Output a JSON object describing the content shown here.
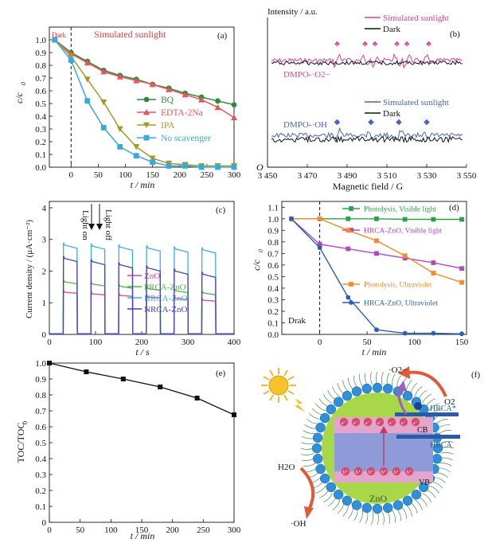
{
  "chart_data": [
    {
      "type": "line",
      "panel_label": "(a)",
      "annotation_dark": "Dark",
      "annotation_title": "Simulated sunlight",
      "xlabel": "t / min",
      "ylabel": "c/c0",
      "xlim": [
        -40,
        300
      ],
      "ylim": [
        0,
        1.1
      ],
      "xticks": [
        0,
        50,
        100,
        150,
        200,
        250,
        300
      ],
      "yticks": [
        0.0,
        0.1,
        0.2,
        0.3,
        0.4,
        0.5,
        0.6,
        0.7,
        0.8,
        0.9,
        1.0
      ],
      "series": [
        {
          "name": "BQ",
          "color": "#2e8b3e",
          "marker": "circle",
          "x": [
            -30,
            0,
            30,
            60,
            90,
            120,
            150,
            180,
            210,
            240,
            270,
            300
          ],
          "y": [
            1.0,
            0.9,
            0.83,
            0.76,
            0.72,
            0.69,
            0.65,
            0.62,
            0.58,
            0.55,
            0.52,
            0.49
          ]
        },
        {
          "name": "EDTA-2Na",
          "color": "#e8565a",
          "marker": "triangle",
          "x": [
            -30,
            0,
            30,
            60,
            90,
            120,
            150,
            180,
            210,
            240,
            270,
            300
          ],
          "y": [
            1.0,
            0.89,
            0.82,
            0.75,
            0.71,
            0.68,
            0.65,
            0.61,
            0.57,
            0.53,
            0.47,
            0.39
          ]
        },
        {
          "name": "IPA",
          "color": "#a49a2a",
          "marker": "triangle-down",
          "x": [
            -30,
            0,
            30,
            60,
            90,
            120,
            150,
            180,
            210,
            240,
            270,
            300
          ],
          "y": [
            1.0,
            0.87,
            0.69,
            0.51,
            0.3,
            0.16,
            0.07,
            0.03,
            0.02,
            0.01,
            0.01,
            0.01
          ]
        },
        {
          "name": "No scavenger",
          "color": "#3aa8e0",
          "marker": "square",
          "x": [
            -30,
            0,
            30,
            60,
            90,
            120,
            150,
            180,
            210,
            240,
            270,
            300
          ],
          "y": [
            1.0,
            0.84,
            0.52,
            0.31,
            0.16,
            0.09,
            0.04,
            0.01,
            0.01,
            0.0,
            0.0,
            0.0
          ]
        }
      ]
    },
    {
      "type": "line",
      "panel_label": "(b)",
      "ylabel_top": "Intensity / a.u.",
      "origin_label": "O",
      "xlabel": "Magnetic field / G",
      "xlim": [
        3450,
        3550
      ],
      "xticks": [
        3450,
        3470,
        3490,
        3510,
        3530,
        3550
      ],
      "xtick_labels": [
        "3 450",
        "3 470",
        "3 490",
        "3 510",
        "3 530",
        "3 550"
      ],
      "upper_legend": [
        {
          "name": "Simulated sunlight",
          "color": "#e0409a"
        },
        {
          "name": "Dark",
          "color": "#111111"
        }
      ],
      "lower_legend": [
        {
          "name": "Simulated sunlight",
          "color": "#4a62c8"
        },
        {
          "name": "Dark",
          "color": "#111111"
        }
      ],
      "label_o2": "DMPO-·O2−",
      "label_oh": "DMPO-·OH",
      "o2_peaks": [
        3485,
        3499,
        3504,
        3515,
        3520,
        3531
      ],
      "oh_peaks": [
        3485,
        3502,
        3516,
        3530
      ]
    },
    {
      "type": "line",
      "panel_label": "(c)",
      "xlabel": "t / s",
      "ylabel": "Current density / (μA·cm⁻²)",
      "xlim": [
        0,
        400
      ],
      "ylim": [
        0,
        4.2
      ],
      "xticks": [
        0,
        100,
        200,
        300,
        400
      ],
      "yticks": [
        0,
        1,
        2,
        3,
        4
      ],
      "annotation_on": "Light on",
      "annotation_off": "Light off",
      "on_intervals": [
        [
          30,
          60
        ],
        [
          90,
          120
        ],
        [
          150,
          180
        ],
        [
          210,
          240
        ],
        [
          270,
          300
        ],
        [
          330,
          360
        ]
      ],
      "series": [
        {
          "name": "ZnO",
          "color": "#e0409a",
          "on_start": 1.33,
          "on_end": 1.3,
          "step": -0.05
        },
        {
          "name": "PRCA-ZnO",
          "color": "#56b04a",
          "on_start": 1.66,
          "on_end": 1.6,
          "step": -0.07
        },
        {
          "name": "HRCA-ZnO",
          "color": "#38b0e8",
          "on_start": 2.82,
          "on_end": 2.72,
          "step": -0.03
        },
        {
          "name": "NRCA-ZnO",
          "color": "#4a40b8",
          "on_start": 2.4,
          "on_end": 2.3,
          "step": -0.1
        }
      ]
    },
    {
      "type": "line",
      "panel_label": "(d)",
      "annotation_dark": "Drak",
      "xlabel": "t / min",
      "ylabel": "c/c0",
      "xlim": [
        -40,
        155
      ],
      "ylim": [
        0,
        1.15
      ],
      "xticks": [
        0,
        50,
        100,
        150
      ],
      "yticks": [
        0.0,
        0.1,
        0.2,
        0.3,
        0.4,
        0.5,
        0.6,
        0.7,
        0.8,
        0.9,
        1.0,
        1.1
      ],
      "ytick_labels": [
        "0.0",
        "0.1",
        "0.2",
        "0.3",
        "0.4",
        "0.5",
        "0.6",
        "0.7",
        "0.8",
        "0.9",
        "1.0",
        "1.1"
      ],
      "series": [
        {
          "name": "Photolysis, Visible light",
          "color": "#2ea04a",
          "marker": "square",
          "x": [
            -30,
            0,
            30,
            60,
            90,
            120,
            150
          ],
          "y": [
            1.0,
            1.0,
            1.0,
            1.0,
            0.995,
            0.995,
            0.995
          ]
        },
        {
          "name": "HRCA-ZnO, Visible light",
          "color": "#b048c0",
          "marker": "square",
          "x": [
            -30,
            0,
            30,
            60,
            90,
            120,
            150
          ],
          "y": [
            1.0,
            0.78,
            0.74,
            0.7,
            0.66,
            0.62,
            0.57
          ]
        },
        {
          "name": "Photolysis, Ultraviolet",
          "color": "#f48a2a",
          "marker": "square",
          "x": [
            -30,
            0,
            30,
            60,
            90,
            120,
            150
          ],
          "y": [
            1.0,
            1.0,
            0.9,
            0.81,
            0.68,
            0.53,
            0.45
          ]
        },
        {
          "name": "HRCA-ZnO, Ultraviolet",
          "color": "#2a5fb8",
          "marker": "circle",
          "x": [
            -30,
            0,
            30,
            60,
            90,
            120,
            150
          ],
          "y": [
            1.0,
            0.75,
            0.32,
            0.04,
            0.01,
            0.01,
            0.005
          ]
        }
      ]
    },
    {
      "type": "line",
      "panel_label": "(e)",
      "xlabel": "t / min",
      "ylabel": "TOC/TOC0",
      "xlim": [
        0,
        300
      ],
      "ylim": [
        0,
        1.0
      ],
      "xticks": [
        0,
        50,
        100,
        150,
        200,
        250,
        300
      ],
      "yticks": [
        0,
        0.1,
        0.2,
        0.3,
        0.4,
        0.5,
        0.6,
        0.7,
        0.8,
        0.9,
        1.0
      ],
      "ytick_labels": [
        "0",
        "0.1",
        "0.2",
        "0.3",
        "0.4",
        "0.5",
        "0.6",
        "0.7",
        "0.8",
        "0.9",
        "1.0"
      ],
      "series": [
        {
          "color": "#111111",
          "marker": "square",
          "x": [
            0,
            60,
            120,
            180,
            240,
            300
          ],
          "y": [
            1.0,
            0.945,
            0.9,
            0.85,
            0.78,
            0.675
          ]
        }
      ]
    }
  ],
  "diagram_f": {
    "panel_label": "(f)",
    "o2_radical": "·O2−",
    "o2": "O2",
    "hrca_star": "HRCA*",
    "hrca": "HRCA",
    "cb": "CB",
    "vb": "VB",
    "h2o": "H2O",
    "oh": "·OH",
    "zno": "ZnO",
    "electron": "e⁻",
    "hole": "h⁺"
  }
}
